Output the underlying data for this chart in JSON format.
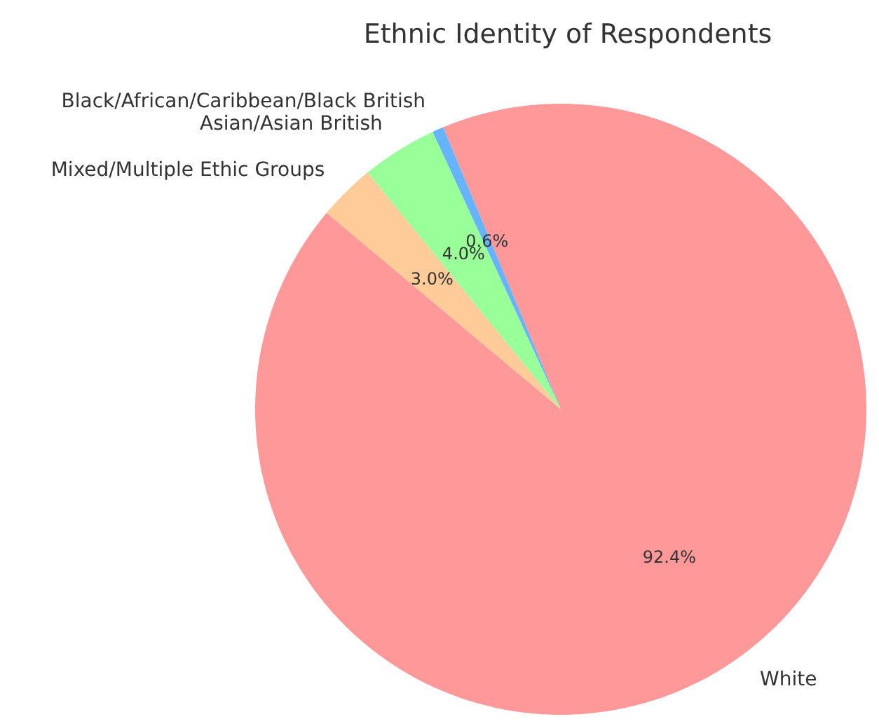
{
  "chart_data": {
    "type": "pie",
    "title": "Ethnic Identity of Respondents",
    "categories": [
      "White",
      "Black/African/Caribbean/Black British",
      "Asian/Asian British",
      "Mixed/Multiple Ethic Groups"
    ],
    "values": [
      92.4,
      0.6,
      4.0,
      3.0
    ],
    "colors": [
      "#ff9999",
      "#66b3ff",
      "#99ff99",
      "#ffcc99"
    ],
    "value_labels": [
      "92.4%",
      "0.6%",
      "4.0%",
      "3.0%"
    ],
    "legend": false
  }
}
